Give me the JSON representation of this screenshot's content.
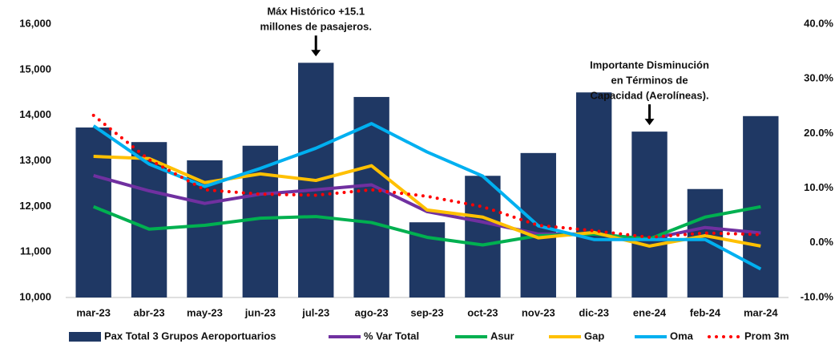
{
  "chart_data": {
    "type": "bar",
    "categories": [
      "mar-23",
      "abr-23",
      "may-23",
      "jun-23",
      "jul-23",
      "ago-23",
      "sep-23",
      "oct-23",
      "nov-23",
      "dic-23",
      "ene-24",
      "feb-24",
      "mar-24"
    ],
    "series": [
      {
        "name": "Pax Total 3 Grupos Aeroportuarios",
        "type": "bar",
        "color": "#1f3864",
        "values": [
          13730,
          13410,
          13010,
          13330,
          15150,
          14400,
          11650,
          12670,
          13170,
          14500,
          13640,
          12380,
          13980
        ]
      },
      {
        "name": "% Var Total",
        "type": "line",
        "axis": "y2",
        "color": "#7030a0",
        "values": [
          12.3,
          9.5,
          7.2,
          8.9,
          9.7,
          10.6,
          5.7,
          3.8,
          1.6,
          1.6,
          0.7,
          2.8,
          1.8
        ]
      },
      {
        "name": "Asur",
        "type": "line",
        "axis": "y2",
        "color": "#00b050",
        "values": [
          6.6,
          2.5,
          3.2,
          4.5,
          4.8,
          3.7,
          1.0,
          -0.4,
          1.3,
          1.6,
          0.7,
          4.7,
          6.6
        ]
      },
      {
        "name": "Gap",
        "type": "line",
        "axis": "y2",
        "color": "#ffc000",
        "values": [
          15.8,
          15.4,
          11.0,
          12.6,
          11.4,
          14.1,
          6.0,
          4.7,
          0.9,
          1.9,
          -0.6,
          1.3,
          -0.6
        ]
      },
      {
        "name": "Oma",
        "type": "line",
        "axis": "y2",
        "color": "#00b0f0",
        "values": [
          21.4,
          14.4,
          10.3,
          13.6,
          17.3,
          21.8,
          16.6,
          12.2,
          3.1,
          0.6,
          0.6,
          0.6,
          -4.8
        ]
      },
      {
        "name": "Prom 3m",
        "type": "line",
        "axis": "y2",
        "dotted": true,
        "color": "#ff0000",
        "values": [
          23.3,
          15.2,
          9.7,
          8.9,
          8.7,
          9.7,
          8.5,
          6.6,
          3.2,
          2.2,
          1.0,
          1.8,
          1.5
        ]
      }
    ],
    "ylim": [
      10000,
      16000
    ],
    "yticks": [
      {
        "value": 10000,
        "label": "10,000"
      },
      {
        "value": 11000,
        "label": "11,000"
      },
      {
        "value": 12000,
        "label": "12,000"
      },
      {
        "value": 13000,
        "label": "13,000"
      },
      {
        "value": 14000,
        "label": "14,000"
      },
      {
        "value": 15000,
        "label": "15,000"
      },
      {
        "value": 16000,
        "label": "16,000"
      }
    ],
    "y2lim": [
      -10,
      40
    ],
    "y2ticks": [
      {
        "value": -10,
        "label": "-10.0%"
      },
      {
        "value": 0,
        "label": "0.0%"
      },
      {
        "value": 10,
        "label": "10.0%"
      },
      {
        "value": 20,
        "label": "20.0%"
      },
      {
        "value": 30,
        "label": "30.0%"
      },
      {
        "value": 40,
        "label": "40.0%"
      }
    ],
    "annotations": [
      {
        "category": 4,
        "lines": [
          "Máx Histórico +15.1",
          "millones de pasajeros."
        ]
      },
      {
        "category": 10,
        "lines": [
          "Importante Disminución",
          "en Términos de",
          "Capacidad (Aerolíneas)."
        ]
      }
    ]
  }
}
